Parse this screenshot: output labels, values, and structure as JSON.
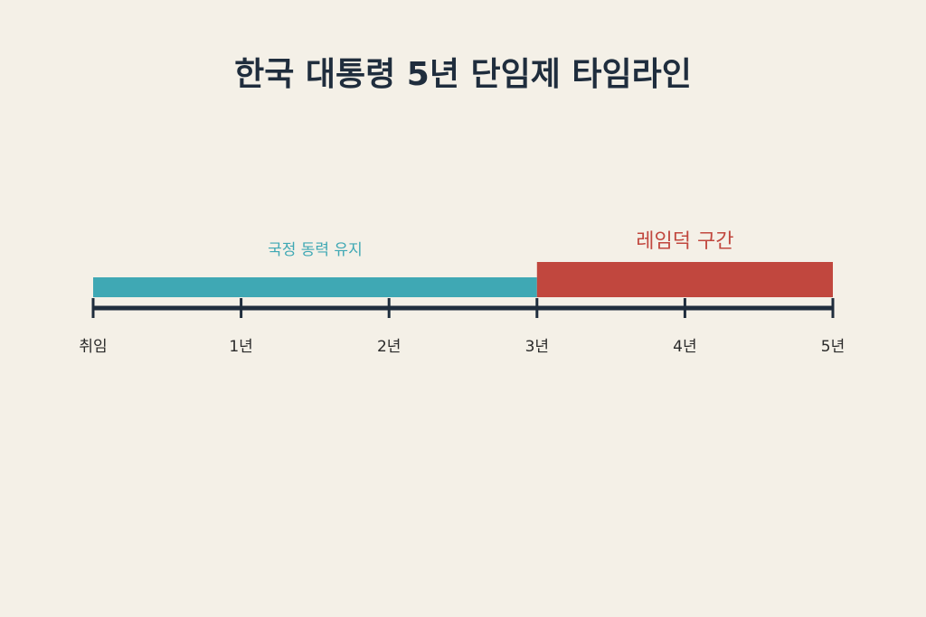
{
  "chart_data": {
    "type": "timeline",
    "title": "한국 대통령 5년 단임제 타임라인",
    "xlim": [
      0,
      5
    ],
    "xticks": [
      {
        "value": 0,
        "label": "취임"
      },
      {
        "value": 1,
        "label": "1년"
      },
      {
        "value": 2,
        "label": "2년"
      },
      {
        "value": 3,
        "label": "3년"
      },
      {
        "value": 4,
        "label": "4년"
      },
      {
        "value": 5,
        "label": "5년"
      }
    ],
    "segments": [
      {
        "name": "국정 동력 유지",
        "start": 0,
        "end": 3,
        "color": "#3fa8b4"
      },
      {
        "name": "레임덕 구간",
        "start": 3,
        "end": 5,
        "color": "#c1473e"
      }
    ]
  }
}
